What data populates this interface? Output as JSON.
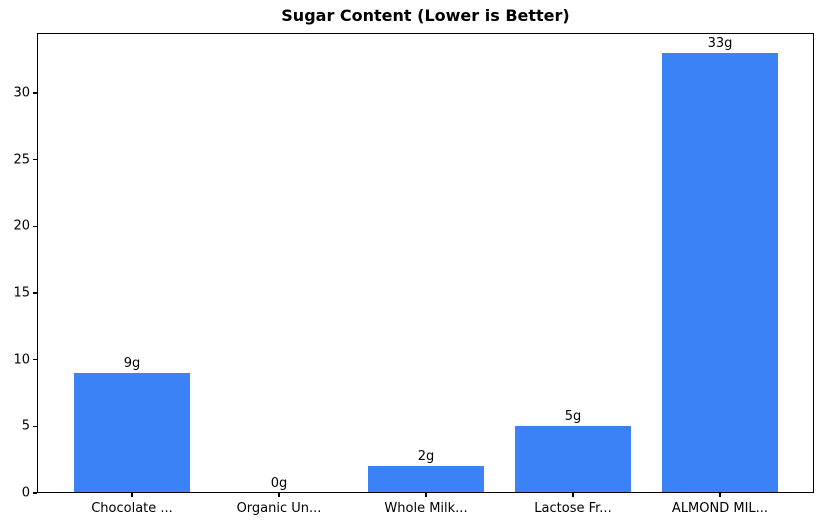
{
  "chart_data": {
    "type": "bar",
    "title": "Sugar Content (Lower is Better)",
    "categories": [
      "Chocolate ...",
      "Organic Un...",
      "Whole Milk...",
      "Lactose Fr...",
      "ALMOND MIL..."
    ],
    "values": [
      9,
      0,
      2,
      5,
      33
    ],
    "bar_labels": [
      "9g",
      "0g",
      "2g",
      "5g",
      "33g"
    ],
    "xlabel": "",
    "ylabel": "",
    "yticks": [
      0,
      5,
      10,
      15,
      20,
      25,
      30
    ],
    "ylim": [
      0,
      34.5
    ],
    "bar_color": "#3b82f6",
    "axis_color": "#000000",
    "background_color": "#ffffff",
    "grid": false,
    "legend": null
  }
}
